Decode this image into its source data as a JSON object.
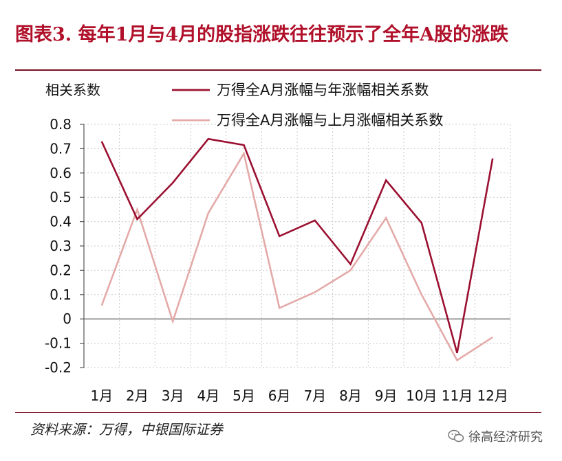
{
  "header": {
    "title": "图表3. 每年1月与4月的股指涨跌往往预示了全年A股的涨跌"
  },
  "footer": {
    "source": "资料来源：万得，中银国际证券",
    "watermark": "徐高经济研究"
  },
  "colors": {
    "title": "#b0102a",
    "series_1": "#9b1030",
    "series_2": "#e3aaa8",
    "grid": "#c8c8c8"
  },
  "icons": {
    "watermark": "wechat-icon"
  },
  "chart_data": {
    "type": "line",
    "ylabel": "相关系数",
    "xlabel": "",
    "categories": [
      "1月",
      "2月",
      "3月",
      "4月",
      "5月",
      "6月",
      "7月",
      "8月",
      "9月",
      "10月",
      "11月",
      "12月"
    ],
    "ylim": [
      -0.2,
      0.8
    ],
    "yticks": [
      0.8,
      0.7,
      0.6,
      0.5,
      0.4,
      0.3,
      0.2,
      0.1,
      0,
      -0.1,
      -0.2
    ],
    "grid": true,
    "legend_position": "top",
    "series": [
      {
        "name": "万得全A月涨幅与年涨幅相关系数",
        "values": [
          0.73,
          0.41,
          0.56,
          0.74,
          0.715,
          0.34,
          0.405,
          0.225,
          0.57,
          0.395,
          -0.14,
          0.66
        ]
      },
      {
        "name": "万得全A月涨幅与上月涨幅相关系数",
        "values": [
          0.055,
          0.45,
          -0.01,
          0.435,
          0.68,
          0.045,
          0.11,
          0.2,
          0.415,
          0.1,
          -0.17,
          -0.075
        ]
      }
    ]
  }
}
